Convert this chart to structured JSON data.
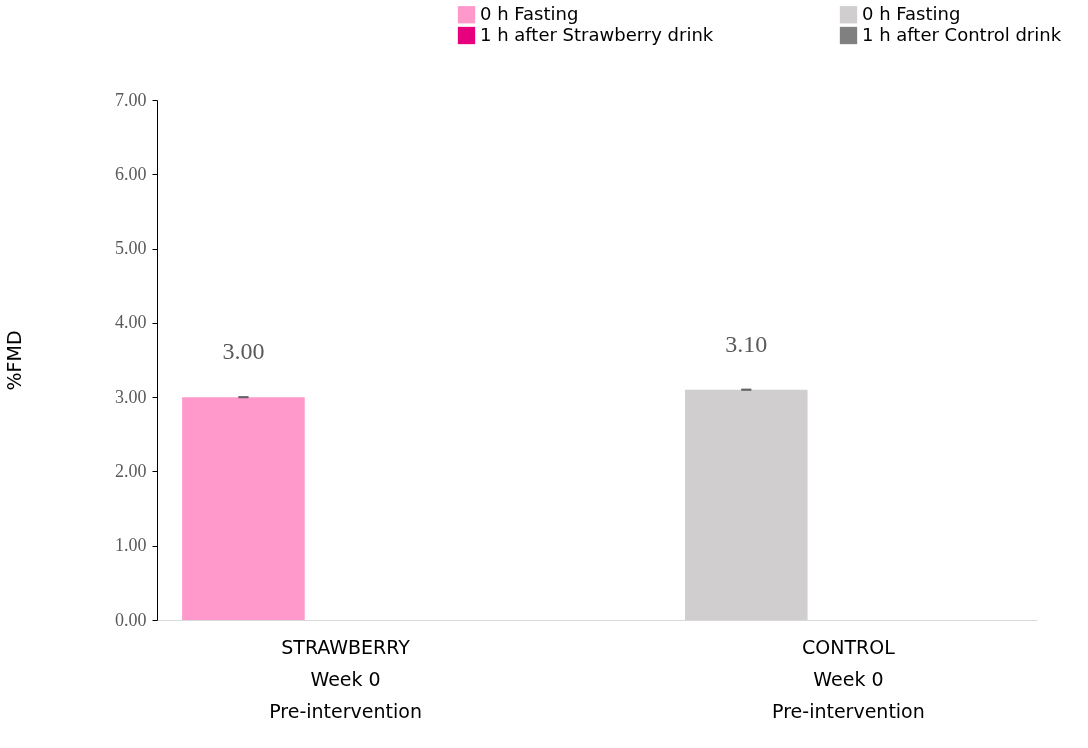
{
  "chart_data": {
    "type": "bar",
    "ylabel": "%FMD",
    "categories": [
      "STRAWBERRY\nWeek 0\nPre-intervention",
      "CONTROL\nWeek 0\nPre-intervention"
    ],
    "series": [
      {
        "name": "0 h Fasting",
        "color": "#ff99cc",
        "values": [
          3.0,
          null
        ],
        "errors": [
          0,
          null
        ],
        "value_labels": [
          "3.00",
          null
        ]
      },
      {
        "name": "1 h after Strawberry  drink",
        "color": "#e6007e",
        "values": [
          0,
          null
        ],
        "value_labels": [
          null,
          null
        ]
      },
      {
        "name": "0 h Fasting",
        "color": "#d0cece",
        "values": [
          null,
          3.1
        ],
        "errors": [
          null,
          0
        ],
        "value_labels": [
          null,
          "3.10"
        ]
      },
      {
        "name": "1 h after Control  drink",
        "color": "#808080",
        "values": [
          null,
          0
        ],
        "value_labels": [
          null,
          null
        ]
      }
    ],
    "ylim": [
      0,
      7
    ],
    "yticks": [
      {
        "value": 0,
        "label": "0.00"
      },
      {
        "value": 1,
        "label": "1.00"
      },
      {
        "value": 2,
        "label": "2.00"
      },
      {
        "value": 3,
        "label": "3.00"
      },
      {
        "value": 4,
        "label": "4.00"
      },
      {
        "value": 5,
        "label": "5.00"
      },
      {
        "value": 6,
        "label": "6.00"
      },
      {
        "value": 7,
        "label": "7.00"
      }
    ],
    "grid": false,
    "legend": "top right"
  }
}
